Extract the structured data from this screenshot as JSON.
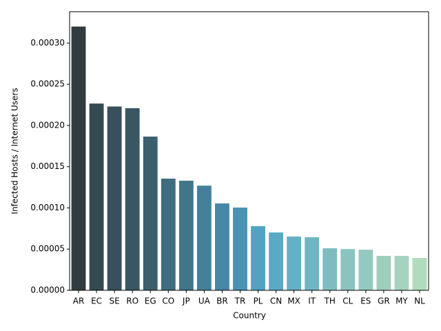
{
  "chart_data": {
    "type": "bar",
    "xlabel": "Country",
    "ylabel": "Infected Hosts / Internet Users",
    "categories": [
      "AR",
      "EC",
      "SE",
      "RO",
      "EG",
      "CO",
      "JP",
      "UA",
      "BR",
      "TR",
      "PL",
      "CN",
      "MX",
      "IT",
      "TH",
      "CL",
      "ES",
      "GR",
      "MY",
      "NL"
    ],
    "values": [
      0.00032,
      0.0002266,
      0.000223,
      0.000221,
      0.0001865,
      0.0001355,
      0.000133,
      0.000127,
      0.0001054,
      0.0001004,
      7.78e-05,
      7.02e-05,
      6.52e-05,
      6.44e-05,
      5.1e-05,
      5e-05,
      4.93e-05,
      4.18e-05,
      4.18e-05,
      3.93e-05
    ],
    "colors": [
      "#323c40",
      "#344a52",
      "#37505b",
      "#395763",
      "#3c5f6e",
      "#3f6c7f",
      "#417689",
      "#44809a",
      "#4787a8",
      "#4a91b4",
      "#51a2c3",
      "#5aaac6",
      "#64b1c6",
      "#70b5c2",
      "#7dbdbf",
      "#89c4c0",
      "#94c9c0",
      "#9fcebd",
      "#a6d3bf",
      "#b0dcbd"
    ],
    "ylim": [
      0,
      0.000338
    ],
    "yticks": [
      {
        "value": 0,
        "label": "0.00000"
      },
      {
        "value": 5e-05,
        "label": "0.00005"
      },
      {
        "value": 0.0001,
        "label": "0.00010"
      },
      {
        "value": 0.00015,
        "label": "0.00015"
      },
      {
        "value": 0.0002,
        "label": "0.00020"
      },
      {
        "value": 0.00025,
        "label": "0.00025"
      },
      {
        "value": 0.0003,
        "label": "0.00030"
      }
    ]
  }
}
